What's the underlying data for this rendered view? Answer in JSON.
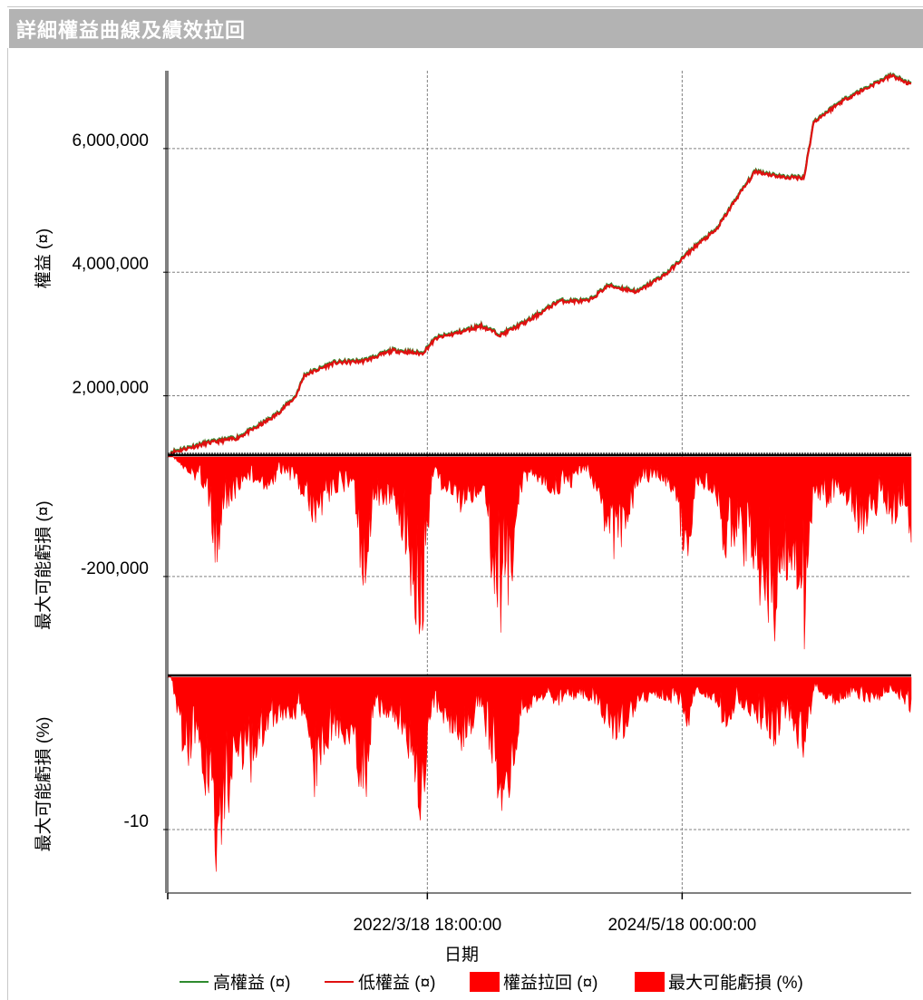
{
  "header": {
    "title": "詳細權益曲線及績效拉回"
  },
  "colors": {
    "high_equity": "#2e8b2e",
    "low_equity": "#e01010",
    "drawdown_fill": "#ff0000",
    "grid": "#808080",
    "header_bg": "#b3b3b3"
  },
  "chart_data": [
    {
      "type": "line",
      "ylabel": "權益 (¤)",
      "y_ticks": [
        2000000,
        4000000,
        6000000
      ],
      "y_tick_labels": [
        "2,000,000",
        "4,000,000",
        "6,000,000"
      ],
      "ylim": [
        1040000,
        7260000
      ],
      "x_range": [
        "2020/1/1",
        "2026/4/30"
      ],
      "series": [
        {
          "name": "高權益 (¤)",
          "color": "#2e8b2e",
          "points": [
            [
              "2020/1/10",
              1100000
            ],
            [
              "2020/5/1",
              1250000
            ],
            [
              "2020/8/1",
              1330000
            ],
            [
              "2020/10/1",
              1500000
            ],
            [
              "2020/12/1",
              1700000
            ],
            [
              "2021/2/1",
              2000000
            ],
            [
              "2021/3/1",
              2350000
            ],
            [
              "2021/6/1",
              2550000
            ],
            [
              "2021/9/1",
              2580000
            ],
            [
              "2021/12/1",
              2750000
            ],
            [
              "2022/3/1",
              2700000
            ],
            [
              "2022/4/15",
              2950000
            ],
            [
              "2022/7/1",
              3050000
            ],
            [
              "2022/9/1",
              3150000
            ],
            [
              "2022/11/1",
              3000000
            ],
            [
              "2023/2/1",
              3250000
            ],
            [
              "2023/5/1",
              3550000
            ],
            [
              "2023/8/1",
              3550000
            ],
            [
              "2023/10/1",
              3800000
            ],
            [
              "2024/1/1",
              3700000
            ],
            [
              "2024/4/1",
              4000000
            ],
            [
              "2024/7/1",
              4450000
            ],
            [
              "2024/9/1",
              4700000
            ],
            [
              "2024/11/1",
              5200000
            ],
            [
              "2025/1/1",
              5650000
            ],
            [
              "2025/4/1",
              5550000
            ],
            [
              "2025/6/1",
              5550000
            ],
            [
              "2025/7/1",
              6450000
            ],
            [
              "2025/10/1",
              6800000
            ],
            [
              "2026/1/1",
              7050000
            ],
            [
              "2026/3/1",
              7200000
            ],
            [
              "2026/4/30",
              7050000
            ]
          ]
        },
        {
          "name": "低權益 (¤)",
          "color": "#e01010",
          "points": [
            [
              "2020/1/10",
              1080000
            ],
            [
              "2020/5/1",
              1230000
            ],
            [
              "2020/8/1",
              1310000
            ],
            [
              "2020/10/1",
              1480000
            ],
            [
              "2020/12/1",
              1680000
            ],
            [
              "2021/2/1",
              1980000
            ],
            [
              "2021/3/1",
              2330000
            ],
            [
              "2021/6/1",
              2530000
            ],
            [
              "2021/9/1",
              2560000
            ],
            [
              "2021/12/1",
              2730000
            ],
            [
              "2022/3/1",
              2680000
            ],
            [
              "2022/4/15",
              2930000
            ],
            [
              "2022/7/1",
              3030000
            ],
            [
              "2022/9/1",
              3130000
            ],
            [
              "2022/11/1",
              2980000
            ],
            [
              "2023/2/1",
              3230000
            ],
            [
              "2023/5/1",
              3530000
            ],
            [
              "2023/8/1",
              3530000
            ],
            [
              "2023/10/1",
              3780000
            ],
            [
              "2024/1/1",
              3680000
            ],
            [
              "2024/4/1",
              3980000
            ],
            [
              "2024/7/1",
              4430000
            ],
            [
              "2024/9/1",
              4680000
            ],
            [
              "2024/11/1",
              5180000
            ],
            [
              "2025/1/1",
              5630000
            ],
            [
              "2025/4/1",
              5530000
            ],
            [
              "2025/6/1",
              5530000
            ],
            [
              "2025/7/1",
              6430000
            ],
            [
              "2025/10/1",
              6780000
            ],
            [
              "2026/1/1",
              7030000
            ],
            [
              "2026/3/1",
              7180000
            ],
            [
              "2026/4/30",
              7030000
            ]
          ]
        }
      ]
    },
    {
      "type": "area",
      "ylabel": "最大可能虧損 (¤)",
      "y_ticks": [
        -200000
      ],
      "y_tick_labels": [
        "-200,000"
      ],
      "ylim": [
        -360000,
        0
      ],
      "series": [
        {
          "name": "權益拉回 (¤)",
          "color": "#ff0000",
          "points": [
            [
              "2020/1/10",
              0
            ],
            [
              "2020/3/1",
              -30000
            ],
            [
              "2020/5/1",
              -60000
            ],
            [
              "2020/6/1",
              -200000
            ],
            [
              "2020/7/1",
              -100000
            ],
            [
              "2020/9/1",
              -40000
            ],
            [
              "2020/11/1",
              -60000
            ],
            [
              "2021/1/1",
              -30000
            ],
            [
              "2021/3/1",
              -80000
            ],
            [
              "2021/4/1",
              -120000
            ],
            [
              "2021/6/1",
              -70000
            ],
            [
              "2021/8/1",
              -60000
            ],
            [
              "2021/9/1",
              -260000
            ],
            [
              "2021/10/1",
              -90000
            ],
            [
              "2021/12/1",
              -80000
            ],
            [
              "2022/1/1",
              -150000
            ],
            [
              "2022/2/1",
              -270000
            ],
            [
              "2022/3/1",
              -320000
            ],
            [
              "2022/4/1",
              -40000
            ],
            [
              "2022/5/1",
              -60000
            ],
            [
              "2022/7/1",
              -100000
            ],
            [
              "2022/8/1",
              -90000
            ],
            [
              "2022/9/1",
              -60000
            ],
            [
              "2022/10/1",
              -200000
            ],
            [
              "2022/11/1",
              -300000
            ],
            [
              "2022/12/1",
              -250000
            ],
            [
              "2023/1/1",
              -80000
            ],
            [
              "2023/2/1",
              -30000
            ],
            [
              "2023/4/1",
              -70000
            ],
            [
              "2023/6/1",
              -60000
            ],
            [
              "2023/8/1",
              -30000
            ],
            [
              "2023/9/1",
              -80000
            ],
            [
              "2023/10/1",
              -160000
            ],
            [
              "2023/11/1",
              -180000
            ],
            [
              "2024/1/1",
              -60000
            ],
            [
              "2024/3/1",
              -40000
            ],
            [
              "2024/5/1",
              -80000
            ],
            [
              "2024/6/1",
              -220000
            ],
            [
              "2024/7/1",
              -50000
            ],
            [
              "2024/8/1",
              -60000
            ],
            [
              "2024/9/1",
              -70000
            ],
            [
              "2024/10/1",
              -200000
            ],
            [
              "2024/11/1",
              -150000
            ],
            [
              "2025/1/1",
              -230000
            ],
            [
              "2025/2/1",
              -280000
            ],
            [
              "2025/3/1",
              -330000
            ],
            [
              "2025/4/1",
              -200000
            ],
            [
              "2025/5/1",
              -260000
            ],
            [
              "2025/6/1",
              -360000
            ],
            [
              "2025/7/1",
              -60000
            ],
            [
              "2025/8/1",
              -90000
            ],
            [
              "2025/10/1",
              -70000
            ],
            [
              "2025/12/1",
              -150000
            ],
            [
              "2026/2/1",
              -80000
            ],
            [
              "2026/3/1",
              -120000
            ],
            [
              "2026/4/15",
              -100000
            ],
            [
              "2026/4/30",
              -170000
            ]
          ]
        }
      ]
    },
    {
      "type": "area",
      "ylabel": "最大可能虧損 (%)",
      "y_ticks": [
        -10
      ],
      "y_tick_labels": [
        "-10"
      ],
      "ylim": [
        -14,
        0
      ],
      "series": [
        {
          "name": "最大可能虧損 (%)",
          "color": "#ff0000",
          "points": [
            [
              "2020/1/10",
              0
            ],
            [
              "2020/2/1",
              -3
            ],
            [
              "2020/3/1",
              -7
            ],
            [
              "2020/4/1",
              -4
            ],
            [
              "2020/5/1",
              -9
            ],
            [
              "2020/6/1",
              -14
            ],
            [
              "2020/7/1",
              -10
            ],
            [
              "2020/8/1",
              -6
            ],
            [
              "2020/9/1",
              -8
            ],
            [
              "2020/11/1",
              -4
            ],
            [
              "2021/1/1",
              -3
            ],
            [
              "2021/3/1",
              -3
            ],
            [
              "2021/4/1",
              -8
            ],
            [
              "2021/6/1",
              -4
            ],
            [
              "2021/8/1",
              -5
            ],
            [
              "2021/9/1",
              -10
            ],
            [
              "2021/10/1",
              -3
            ],
            [
              "2021/12/1",
              -3
            ],
            [
              "2022/1/1",
              -4
            ],
            [
              "2022/2/1",
              -7
            ],
            [
              "2022/3/1",
              -10
            ],
            [
              "2022/4/1",
              -2
            ],
            [
              "2022/5/1",
              -3
            ],
            [
              "2022/7/1",
              -5
            ],
            [
              "2022/8/1",
              -4
            ],
            [
              "2022/9/1",
              -2
            ],
            [
              "2022/10/1",
              -6
            ],
            [
              "2022/11/1",
              -9
            ],
            [
              "2022/12/1",
              -8
            ],
            [
              "2023/1/1",
              -3
            ],
            [
              "2023/3/1",
              -1.5
            ],
            [
              "2023/5/1",
              -2
            ],
            [
              "2023/7/1",
              -1.5
            ],
            [
              "2023/9/1",
              -2
            ],
            [
              "2023/10/1",
              -4
            ],
            [
              "2023/11/1",
              -5
            ],
            [
              "2024/1/1",
              -2
            ],
            [
              "2024/3/1",
              -1.5
            ],
            [
              "2024/5/1",
              -2
            ],
            [
              "2024/6/1",
              -4
            ],
            [
              "2024/7/1",
              -1
            ],
            [
              "2024/9/1",
              -2
            ],
            [
              "2024/10/1",
              -4
            ],
            [
              "2024/11/1",
              -2
            ],
            [
              "2025/1/1",
              -3
            ],
            [
              "2025/2/1",
              -4
            ],
            [
              "2025/3/1",
              -5
            ],
            [
              "2025/4/1",
              -3
            ],
            [
              "2025/5/1",
              -4
            ],
            [
              "2025/6/1",
              -6
            ],
            [
              "2025/7/1",
              -1
            ],
            [
              "2025/9/1",
              -2
            ],
            [
              "2025/11/1",
              -1.5
            ],
            [
              "2026/1/1",
              -2
            ],
            [
              "2026/3/1",
              -1
            ],
            [
              "2026/4/30",
              -2.5
            ]
          ]
        }
      ]
    }
  ],
  "x_axis": {
    "label": "日期",
    "ticks": [
      "2019/1/20 08:00:00",
      "2022/3/18 18:00:00",
      "2024/5/18 00:00:00"
    ],
    "tick_labels": [
      "",
      "2022/3/18 18:00:00",
      "2024/5/18 00:00:00"
    ]
  },
  "legend": {
    "placement": "bottom",
    "items": [
      {
        "label": "高權益 (¤)",
        "kind": "line",
        "color": "#2e8b2e"
      },
      {
        "label": "低權益 (¤)",
        "kind": "line",
        "color": "#e01010"
      },
      {
        "label": "權益拉回 (¤)",
        "kind": "box",
        "color": "#ff0000"
      },
      {
        "label": "最大可能虧損 (%)",
        "kind": "box",
        "color": "#ff0000"
      }
    ]
  }
}
